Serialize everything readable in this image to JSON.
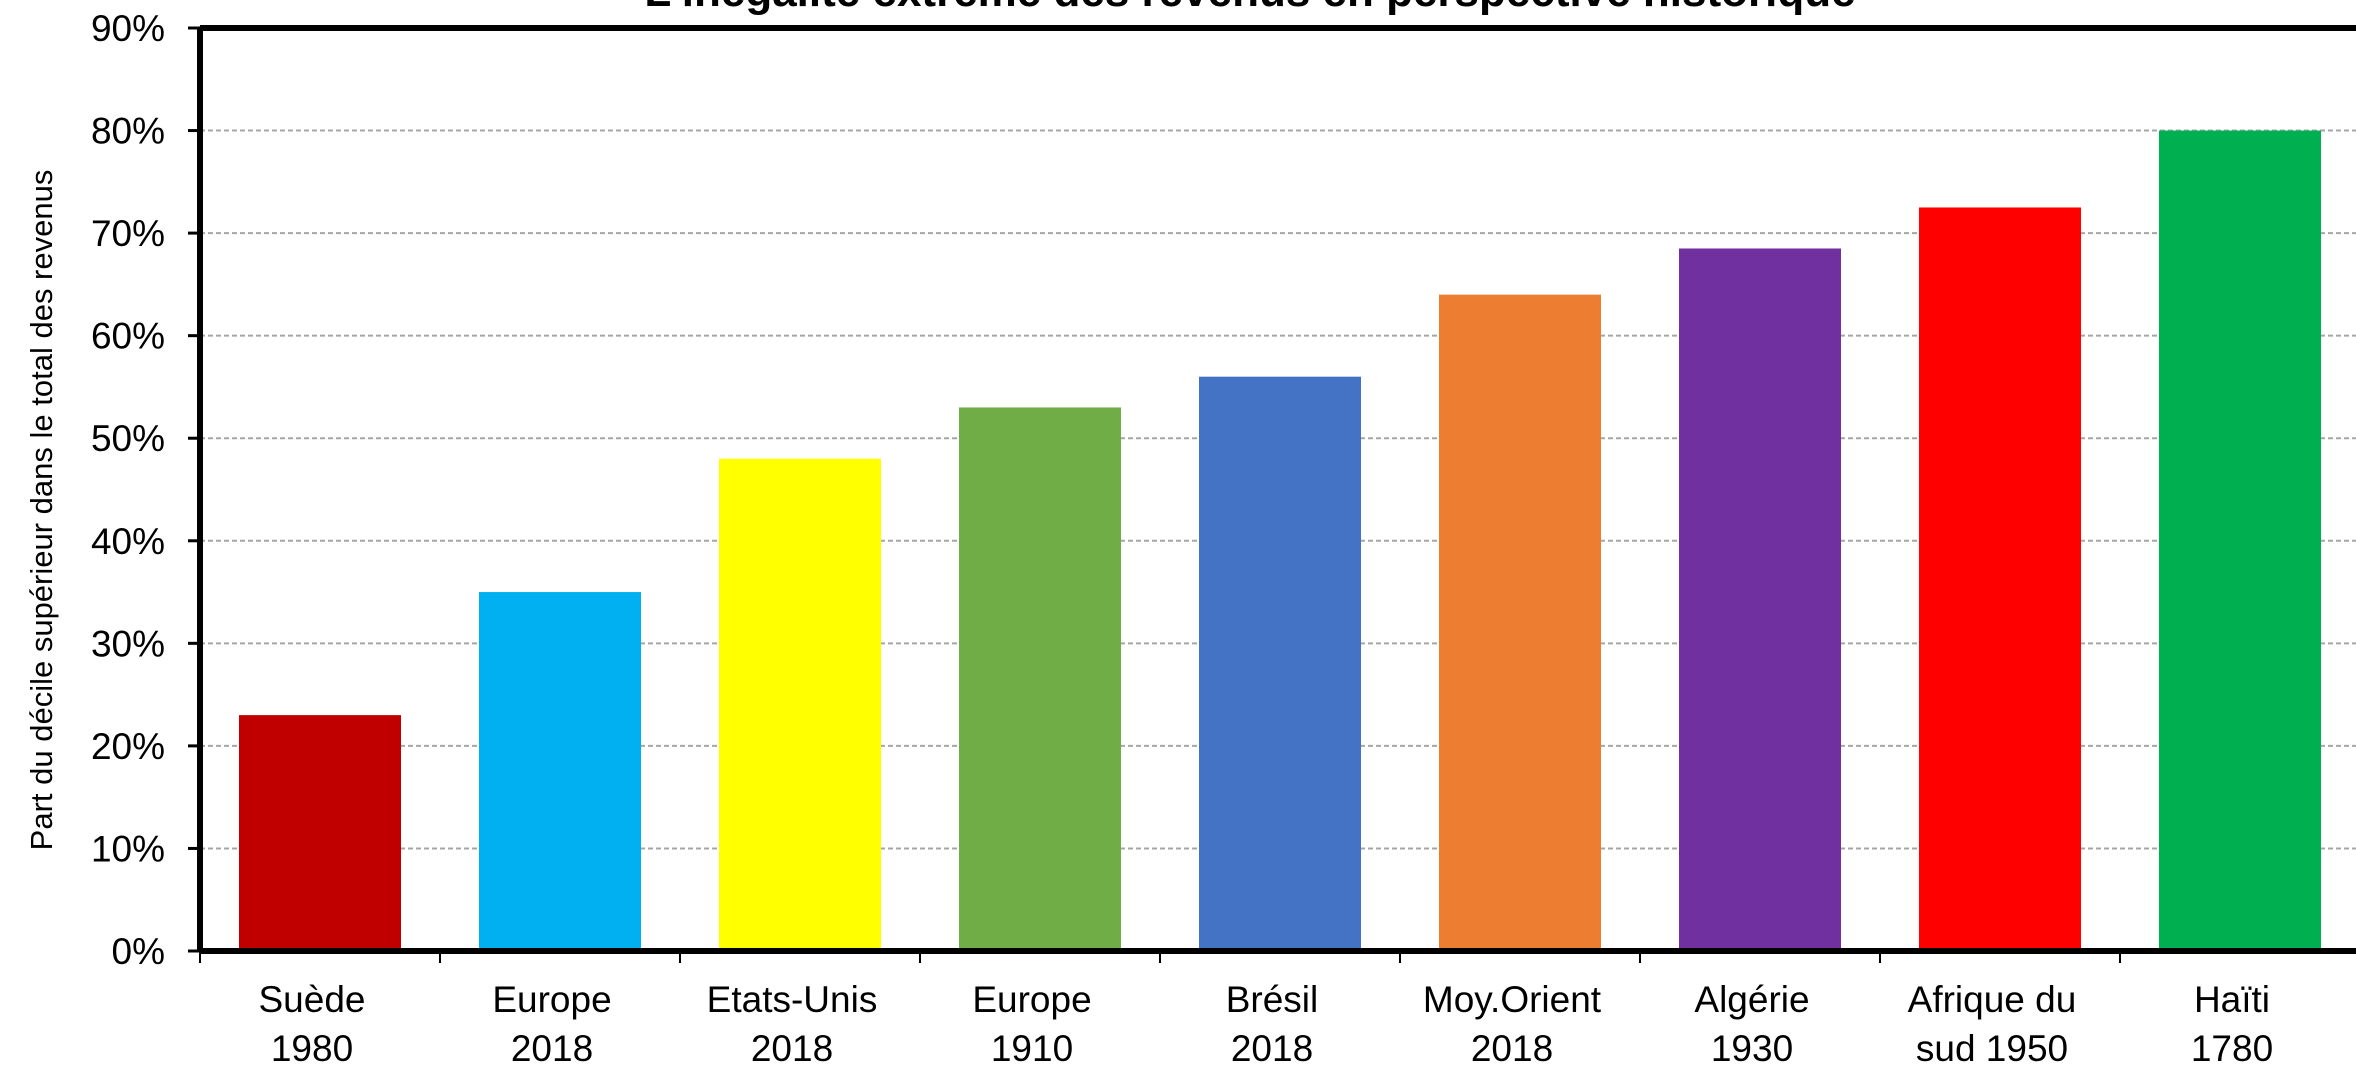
{
  "chart_data": {
    "type": "bar",
    "title": "L'inégalité extrême des revenus en perspective historique",
    "ylabel": "Part du décile supérieur dans le total des revenus",
    "xlabel": "",
    "ylim": [
      0,
      0.9
    ],
    "y_ticks": [
      0,
      0.1,
      0.2,
      0.3,
      0.4,
      0.5,
      0.6,
      0.7,
      0.8,
      0.9
    ],
    "y_tick_labels": [
      "0%",
      "10%",
      "20%",
      "30%",
      "40%",
      "50%",
      "60%",
      "70%",
      "80%",
      "90%"
    ],
    "categories": [
      [
        "Suède",
        "1980"
      ],
      [
        "Europe",
        "2018"
      ],
      [
        "Etats-Unis",
        "2018"
      ],
      [
        "Europe",
        "1910"
      ],
      [
        "Brésil",
        "2018"
      ],
      [
        "Moy.Orient",
        "2018"
      ],
      [
        "Algérie",
        "1930"
      ],
      [
        "Afrique du",
        "sud 1950"
      ],
      [
        "Haïti",
        "1780"
      ]
    ],
    "values": [
      0.23,
      0.35,
      0.48,
      0.53,
      0.56,
      0.64,
      0.685,
      0.725,
      0.8
    ],
    "colors": [
      "#c00000",
      "#00b0f0",
      "#ffff00",
      "#70ad47",
      "#4472c4",
      "#ed7d31",
      "#7030a0",
      "#ff0000",
      "#00b050"
    ],
    "grid": true,
    "legend": "none"
  }
}
